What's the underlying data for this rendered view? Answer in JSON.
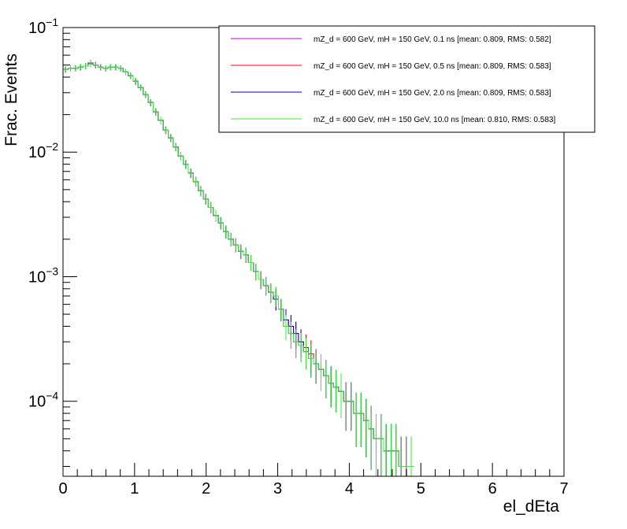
{
  "chart_data": {
    "type": "line",
    "xlabel": "el_dEta",
    "ylabel": "Frac. Events",
    "xlim": [
      0,
      7
    ],
    "ylim": [
      2.5e-05,
      0.1
    ],
    "y_scale": "log",
    "x_ticks": [
      0,
      1,
      2,
      3,
      4,
      5,
      6,
      7
    ],
    "x_tick_labels": [
      "0",
      "1",
      "2",
      "3",
      "4",
      "5",
      "6",
      "7"
    ],
    "y_ticks": [
      0.0001,
      0.001,
      0.01,
      0.1
    ],
    "y_tick_labels": [
      {
        "base": "10",
        "exp": "−4"
      },
      {
        "base": "10",
        "exp": "−3"
      },
      {
        "base": "10",
        "exp": "−2"
      },
      {
        "base": "10",
        "exp": "−1"
      }
    ],
    "legend_position": "top-right",
    "grid": false,
    "bin_width": 0.07,
    "series": [
      {
        "name": "mZ_d = 600 GeV, mH = 150 GeV, 0.1 ns [mean: 0.809, RMS: 0.582]",
        "color": "#cc00cc",
        "values": [
          0.046,
          0.047,
          0.047,
          0.048,
          0.049,
          0.052,
          0.05,
          0.048,
          0.047,
          0.048,
          0.048,
          0.047,
          0.044,
          0.041,
          0.037,
          0.033,
          0.029,
          0.025,
          0.021,
          0.018,
          0.015,
          0.013,
          0.011,
          0.0093,
          0.008,
          0.0068,
          0.0058,
          0.0049,
          0.0042,
          0.0036,
          0.0031,
          0.0027,
          0.0023,
          0.002,
          0.0018,
          0.0016,
          0.0015,
          0.0013,
          0.0011,
          0.00095,
          0.00085,
          0.00075,
          0.0007,
          0.00055,
          0.0004,
          0.00035,
          0.0003,
          0.00028,
          0.00025,
          0.00022,
          0.0002,
          0.00018,
          0.00016,
          0.00014,
          0.00013,
          0.00012,
          0.0001,
          0.0001,
          8e-05,
          8e-05,
          7e-05,
          6e-05,
          5e-05,
          5e-05,
          4e-05,
          4e-05,
          4e-05,
          3e-05,
          3e-05,
          3e-05
        ]
      },
      {
        "name": "mZ_d = 600 GeV, mH = 150 GeV, 0.5 ns [mean: 0.809, RMS: 0.583]",
        "color": "#ff0000",
        "values": [
          0.046,
          0.047,
          0.047,
          0.048,
          0.049,
          0.051,
          0.05,
          0.048,
          0.047,
          0.048,
          0.048,
          0.047,
          0.044,
          0.041,
          0.037,
          0.033,
          0.029,
          0.025,
          0.021,
          0.018,
          0.015,
          0.013,
          0.011,
          0.0093,
          0.008,
          0.0068,
          0.0058,
          0.0049,
          0.0042,
          0.0036,
          0.0031,
          0.0027,
          0.0023,
          0.002,
          0.0018,
          0.0016,
          0.0015,
          0.0013,
          0.0011,
          0.00095,
          0.00085,
          0.00075,
          0.00066,
          0.00055,
          0.00045,
          0.0004,
          0.00035,
          0.0003,
          0.00027,
          0.00024,
          0.0002,
          0.00018,
          0.00016,
          0.00014,
          0.00013,
          0.00012,
          0.0001,
          0.0001,
          8e-05,
          8e-05,
          7e-05,
          6e-05,
          5e-05,
          5e-05,
          4e-05,
          4e-05,
          4e-05,
          3e-05,
          3e-05,
          3e-05
        ]
      },
      {
        "name": "mZ_d = 600 GeV, mH = 150 GeV, 2.0 ns [mean: 0.809, RMS: 0.583]",
        "color": "#0000cc",
        "values": [
          0.046,
          0.047,
          0.047,
          0.048,
          0.049,
          0.051,
          0.05,
          0.048,
          0.047,
          0.048,
          0.048,
          0.047,
          0.044,
          0.041,
          0.037,
          0.033,
          0.029,
          0.025,
          0.021,
          0.018,
          0.015,
          0.013,
          0.011,
          0.0093,
          0.008,
          0.0068,
          0.0058,
          0.0049,
          0.0042,
          0.0036,
          0.0031,
          0.0027,
          0.0023,
          0.002,
          0.0018,
          0.0016,
          0.0015,
          0.0013,
          0.0011,
          0.00095,
          0.00085,
          0.00075,
          0.00066,
          0.00055,
          0.00045,
          0.0004,
          0.00035,
          0.0003,
          0.00025,
          0.00022,
          0.0002,
          0.00018,
          0.00016,
          0.00014,
          0.00013,
          0.00012,
          0.0001,
          0.0001,
          8e-05,
          8e-05,
          7e-05,
          6e-05,
          5e-05,
          5e-05,
          4e-05,
          4e-05,
          4e-05,
          3e-05,
          3e-05,
          3e-05
        ]
      },
      {
        "name": "mZ_d = 600 GeV, mH = 150 GeV, 10.0 ns [mean: 0.810, RMS: 0.583]",
        "color": "#33ee33",
        "values": [
          0.046,
          0.047,
          0.047,
          0.048,
          0.049,
          0.051,
          0.05,
          0.048,
          0.047,
          0.048,
          0.048,
          0.047,
          0.044,
          0.041,
          0.037,
          0.033,
          0.029,
          0.025,
          0.021,
          0.018,
          0.015,
          0.013,
          0.011,
          0.0093,
          0.008,
          0.0068,
          0.0058,
          0.0049,
          0.0042,
          0.0036,
          0.0031,
          0.0027,
          0.0023,
          0.002,
          0.0018,
          0.0016,
          0.0015,
          0.0013,
          0.0011,
          0.00095,
          0.00085,
          0.00075,
          0.0007,
          0.00055,
          0.0004,
          0.00035,
          0.0003,
          0.00028,
          0.00025,
          0.00022,
          0.0002,
          0.00018,
          0.00016,
          0.00014,
          0.00013,
          0.00012,
          0.0001,
          0.0001,
          8e-05,
          8e-05,
          7e-05,
          6e-05,
          5e-05,
          5e-05,
          4e-05,
          4e-05,
          4e-05,
          3e-05,
          3e-05,
          3e-05
        ]
      }
    ]
  }
}
